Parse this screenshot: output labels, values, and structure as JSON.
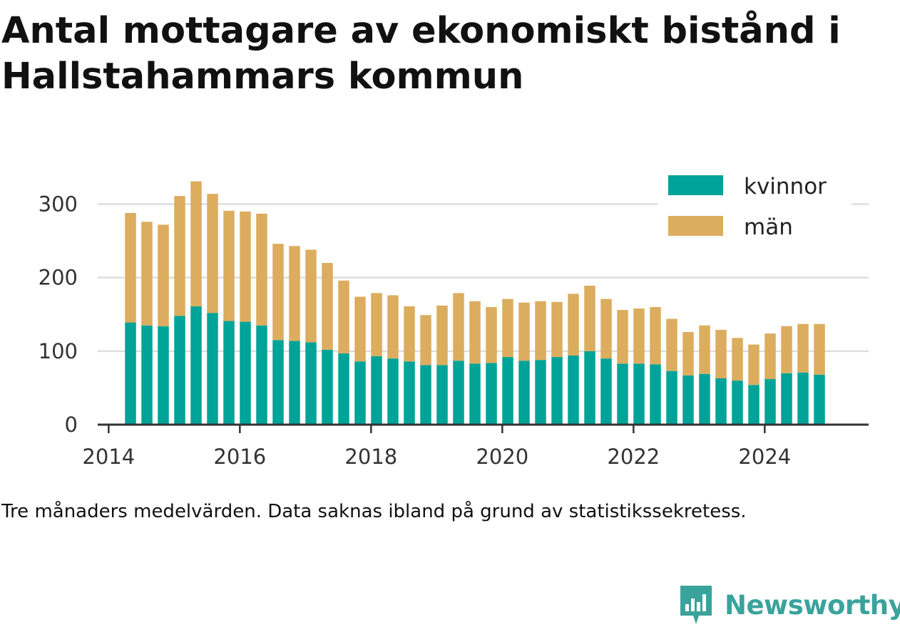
{
  "title": "Antal mottagare av ekonomiskt bistånd i Hallstahammars kommun",
  "caption": "Tre månaders medelvärden. Data saknas ibland på grund av statistikssekretess.",
  "brand": {
    "name": "Newsworthy",
    "icon": "newsworthy-logo-icon",
    "color": "#3aa39b"
  },
  "chart_data": {
    "type": "bar",
    "stacked": true,
    "grid": "horizontal",
    "legend_position": "top-right",
    "xlim": [
      "2013-11",
      "2025-08"
    ],
    "ylim": [
      0,
      350
    ],
    "x_ticks": [
      "2014",
      "2016",
      "2018",
      "2020",
      "2022",
      "2024"
    ],
    "y_ticks": [
      0,
      100,
      200,
      300
    ],
    "colors": {
      "kvinnor": "#00a398",
      "män": "#dcad5f",
      "grid": "#dddddd",
      "axis": "#333333"
    },
    "x": [
      "2014-05",
      "2014-08",
      "2014-11",
      "2015-02",
      "2015-05",
      "2015-08",
      "2015-11",
      "2016-02",
      "2016-05",
      "2016-08",
      "2016-11",
      "2017-02",
      "2017-05",
      "2017-08",
      "2017-11",
      "2018-02",
      "2018-05",
      "2018-08",
      "2018-11",
      "2019-02",
      "2019-05",
      "2019-08",
      "2019-11",
      "2020-02",
      "2020-05",
      "2020-08",
      "2020-11",
      "2021-02",
      "2021-05",
      "2021-08",
      "2021-11",
      "2022-02",
      "2022-05",
      "2022-08",
      "2022-11",
      "2023-02",
      "2023-05",
      "2023-08",
      "2023-11",
      "2024-02",
      "2024-05",
      "2024-08",
      "2024-11"
    ],
    "series": [
      {
        "name": "kvinnor",
        "values": [
          139,
          135,
          134,
          148,
          161,
          152,
          141,
          140,
          135,
          115,
          114,
          112,
          102,
          97,
          86,
          93,
          90,
          86,
          81,
          81,
          87,
          83,
          84,
          92,
          87,
          88,
          92,
          94,
          100,
          90,
          83,
          83,
          82,
          73,
          67,
          69,
          63,
          60,
          54,
          62,
          70,
          71,
          68
        ]
      },
      {
        "name": "män",
        "values": [
          149,
          141,
          138,
          163,
          170,
          162,
          150,
          150,
          152,
          131,
          129,
          126,
          118,
          99,
          88,
          86,
          86,
          75,
          68,
          81,
          92,
          85,
          76,
          79,
          79,
          80,
          75,
          84,
          89,
          81,
          73,
          75,
          78,
          71,
          59,
          66,
          66,
          58,
          55,
          62,
          64,
          66,
          69
        ]
      }
    ]
  }
}
